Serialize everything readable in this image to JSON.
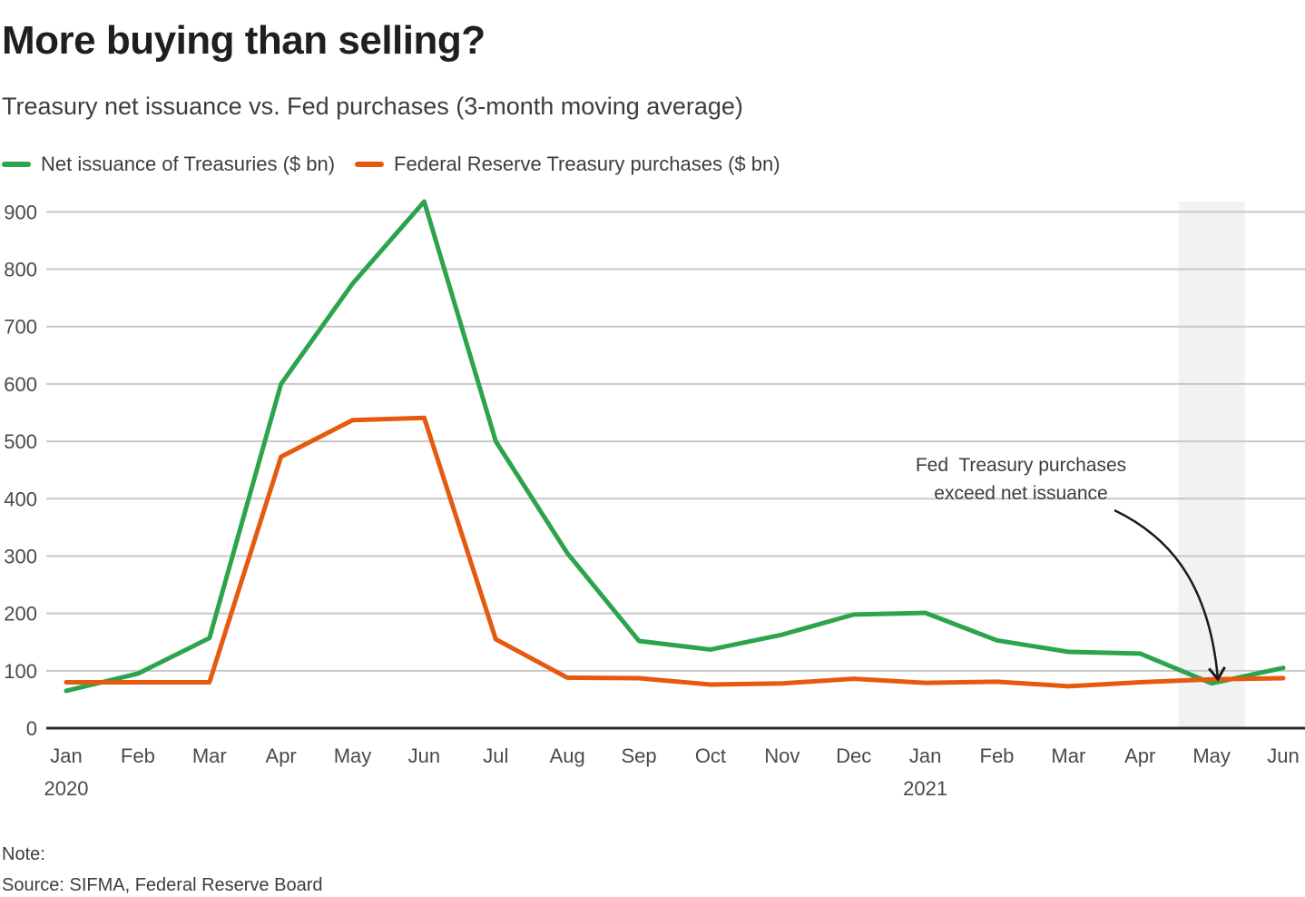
{
  "header": {
    "title": "More buying than selling?",
    "subtitle": "Treasury net issuance vs. Fed purchases (3-month moving average)"
  },
  "chart_data": {
    "type": "line",
    "categories": [
      "Jan",
      "Feb",
      "Mar",
      "Apr",
      "May",
      "Jun",
      "Jul",
      "Aug",
      "Sep",
      "Oct",
      "Nov",
      "Dec",
      "Jan",
      "Feb",
      "Mar",
      "Apr",
      "May",
      "Jun"
    ],
    "year_markers": [
      {
        "index": 0,
        "label": "2020"
      },
      {
        "index": 12,
        "label": "2021"
      }
    ],
    "series": [
      {
        "name": "Net issuance of Treasuries ($ bn)",
        "color": "#2ca44c",
        "values": [
          65,
          95,
          157,
          600,
          775,
          918,
          500,
          305,
          152,
          137,
          163,
          198,
          201,
          153,
          133,
          130,
          78,
          105
        ]
      },
      {
        "name": "Federal Reserve Treasury purchases ($ bn)",
        "color": "#e55a0e",
        "values": [
          80,
          80,
          80,
          473,
          537,
          541,
          155,
          88,
          87,
          76,
          78,
          86,
          79,
          81,
          73,
          80,
          85,
          87
        ]
      }
    ],
    "ylim": [
      0,
      918
    ],
    "yticks": [
      0,
      100,
      200,
      300,
      400,
      500,
      600,
      700,
      800,
      900
    ],
    "grid": "horizontal",
    "legend_position": "top",
    "highlight_band": {
      "category_index": 16,
      "color": "#f2f2f2"
    },
    "annotation": {
      "line1": "Fed  Treasury purchases",
      "line2": "exceed net issuance"
    }
  },
  "footer": {
    "note_label": "Note:",
    "source": "Source: SIFMA, Federal Reserve Board"
  },
  "colors": {
    "grid": "#c8c8c8",
    "axis": "#2b2b2b",
    "arrow": "#1a1a1a",
    "axis_label": "#4a4a4a",
    "title_text": "#1f1f1f",
    "body_text": "#3d3d3d"
  }
}
